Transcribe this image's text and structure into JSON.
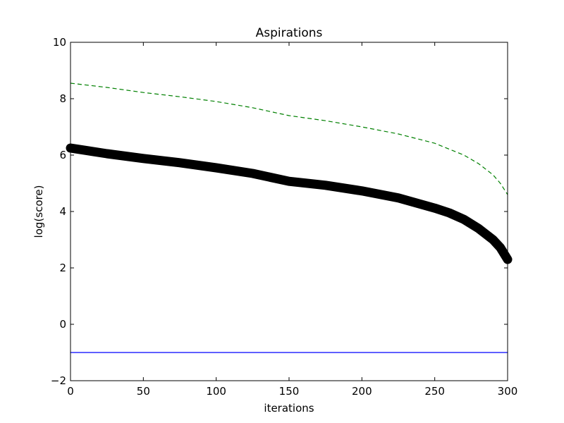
{
  "chart_data": {
    "type": "line",
    "title": "Aspirations",
    "xlabel": "iterations",
    "ylabel": "log(score)",
    "xlim": [
      0,
      300
    ],
    "ylim": [
      -2,
      10
    ],
    "xticks": [
      0,
      50,
      100,
      150,
      200,
      250,
      300
    ],
    "yticks": [
      -2,
      0,
      2,
      4,
      6,
      8,
      10
    ],
    "xtick_labels": [
      "0",
      "50",
      "100",
      "150",
      "200",
      "250",
      "300"
    ],
    "ytick_labels": [
      "−2",
      "0",
      "2",
      "4",
      "6",
      "8",
      "10"
    ],
    "grid": false,
    "legend": "none",
    "series": [
      {
        "style": "solid",
        "color": "#0000ff",
        "x": [
          0,
          300
        ],
        "y": [
          -1.0,
          -1.0
        ]
      },
      {
        "style": "dashed",
        "color": "#008000",
        "x": [
          0,
          25,
          50,
          75,
          100,
          125,
          150,
          175,
          200,
          225,
          250,
          270,
          280,
          290,
          295,
          300
        ],
        "y": [
          8.55,
          8.4,
          8.22,
          8.07,
          7.9,
          7.68,
          7.4,
          7.22,
          7.0,
          6.75,
          6.42,
          6.0,
          5.7,
          5.3,
          5.0,
          4.6
        ]
      },
      {
        "style": "thick-markers",
        "color": "#000000",
        "x": [
          0,
          25,
          50,
          75,
          100,
          125,
          150,
          175,
          200,
          225,
          250,
          260,
          270,
          280,
          290,
          295,
          300
        ],
        "y": [
          6.25,
          6.05,
          5.88,
          5.73,
          5.55,
          5.35,
          5.07,
          4.93,
          4.73,
          4.48,
          4.12,
          3.95,
          3.72,
          3.4,
          3.0,
          2.72,
          2.3
        ]
      }
    ]
  }
}
